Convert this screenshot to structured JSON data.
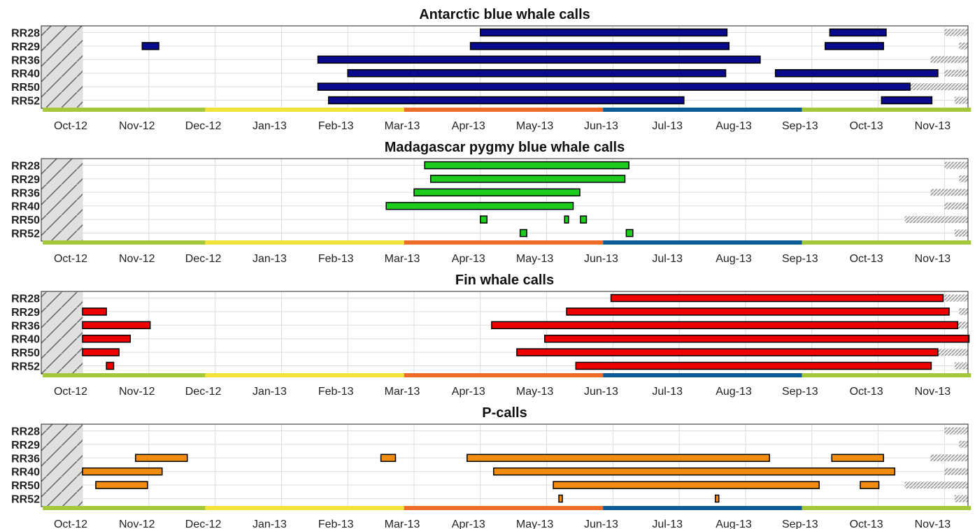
{
  "figure": {
    "stations": [
      "RR28",
      "RR29",
      "RR36",
      "RR40",
      "RR50",
      "RR52"
    ],
    "month_ticks": [
      "Oct-12",
      "Nov-12",
      "Dec-12",
      "Jan-13",
      "Feb-13",
      "Mar-13",
      "Apr-13",
      "May-13",
      "Jun-13",
      "Jul-13",
      "Aug-13",
      "Sep-13",
      "Oct-13",
      "Nov-13"
    ],
    "season_colors": {
      "spring": "#a5c83a",
      "summer": "#f2e33b",
      "autumn": "#ec6c28",
      "winter": "#0c5a96"
    }
  },
  "chart_data": [
    {
      "type": "gantt",
      "title": "Antarctic blue whale calls",
      "color": "#0a0a8c",
      "x_unit": "month index (0 = 1 Oct 2012)",
      "xlim": [
        -0.6,
        13.4
      ],
      "no_data_before": 0.0,
      "no_data_after": [
        13.0,
        13.22,
        12.79,
        13.0,
        12.4,
        13.15
      ],
      "bars": [
        {
          "station": "RR28",
          "start": 6.0,
          "end": 9.72
        },
        {
          "station": "RR28",
          "start": 11.27,
          "end": 12.12
        },
        {
          "station": "RR29",
          "start": 0.9,
          "end": 1.15
        },
        {
          "station": "RR29",
          "start": 5.85,
          "end": 9.75
        },
        {
          "station": "RR29",
          "start": 11.2,
          "end": 12.08
        },
        {
          "station": "RR36",
          "start": 3.55,
          "end": 10.22
        },
        {
          "station": "RR40",
          "start": 4.0,
          "end": 9.7
        },
        {
          "station": "RR40",
          "start": 10.45,
          "end": 12.9
        },
        {
          "station": "RR50",
          "start": 3.55,
          "end": 12.48
        },
        {
          "station": "RR52",
          "start": 3.71,
          "end": 9.07
        },
        {
          "station": "RR52",
          "start": 12.05,
          "end": 12.81
        }
      ]
    },
    {
      "type": "gantt",
      "title": "Madagascar pygmy blue whale calls",
      "color": "#1dcc1d",
      "x_unit": "month index (0 = 1 Oct 2012)",
      "xlim": [
        -0.6,
        13.4
      ],
      "no_data_before": 0.0,
      "no_data_after": [
        13.0,
        13.22,
        12.79,
        13.0,
        12.4,
        13.15
      ],
      "bars": [
        {
          "station": "RR28",
          "start": 5.16,
          "end": 8.24
        },
        {
          "station": "RR29",
          "start": 5.25,
          "end": 8.18
        },
        {
          "station": "RR36",
          "start": 5.0,
          "end": 7.5
        },
        {
          "station": "RR40",
          "start": 4.58,
          "end": 7.4
        },
        {
          "station": "RR50",
          "start": 6.0,
          "end": 6.1
        },
        {
          "station": "RR50",
          "start": 7.27,
          "end": 7.33
        },
        {
          "station": "RR50",
          "start": 7.51,
          "end": 7.6
        },
        {
          "station": "RR52",
          "start": 6.6,
          "end": 6.7
        },
        {
          "station": "RR52",
          "start": 8.2,
          "end": 8.3
        }
      ]
    },
    {
      "type": "gantt",
      "title": "Fin whale calls",
      "color": "#ee0000",
      "x_unit": "month index (0 = 1 Oct 2012)",
      "xlim": [
        -0.6,
        13.4
      ],
      "no_data_before": 0.0,
      "no_data_after": [
        13.0,
        13.22,
        12.79,
        13.0,
        12.4,
        13.15
      ],
      "bars": [
        {
          "station": "RR28",
          "start": 7.97,
          "end": 12.98
        },
        {
          "station": "RR29",
          "start": 0.0,
          "end": 0.36
        },
        {
          "station": "RR29",
          "start": 7.3,
          "end": 13.07
        },
        {
          "station": "RR36",
          "start": 0.0,
          "end": 1.02
        },
        {
          "station": "RR36",
          "start": 6.17,
          "end": 13.2
        },
        {
          "station": "RR40",
          "start": 0.0,
          "end": 0.72
        },
        {
          "station": "RR40",
          "start": 6.97,
          "end": 13.37
        },
        {
          "station": "RR50",
          "start": 0.0,
          "end": 0.55
        },
        {
          "station": "RR50",
          "start": 6.55,
          "end": 12.9
        },
        {
          "station": "RR52",
          "start": 0.36,
          "end": 0.47
        },
        {
          "station": "RR52",
          "start": 7.44,
          "end": 12.8
        }
      ]
    },
    {
      "type": "gantt",
      "title": "P-calls",
      "color": "#f08c10",
      "x_unit": "month index (0 = 1 Oct 2012)",
      "xlim": [
        -0.6,
        13.4
      ],
      "no_data_before": 0.0,
      "no_data_after": [
        13.0,
        13.22,
        12.79,
        13.0,
        12.4,
        13.15
      ],
      "bars": [
        {
          "station": "RR36",
          "start": 0.8,
          "end": 1.58
        },
        {
          "station": "RR36",
          "start": 4.5,
          "end": 4.72
        },
        {
          "station": "RR36",
          "start": 5.8,
          "end": 10.36
        },
        {
          "station": "RR36",
          "start": 11.3,
          "end": 12.08
        },
        {
          "station": "RR40",
          "start": 0.0,
          "end": 1.2
        },
        {
          "station": "RR40",
          "start": 6.2,
          "end": 12.25
        },
        {
          "station": "RR50",
          "start": 0.2,
          "end": 0.98
        },
        {
          "station": "RR50",
          "start": 7.1,
          "end": 11.11
        },
        {
          "station": "RR50",
          "start": 11.73,
          "end": 12.01
        },
        {
          "station": "RR52",
          "start": 7.19,
          "end": 7.23
        },
        {
          "station": "RR52",
          "start": 9.55,
          "end": 9.59
        }
      ]
    }
  ]
}
